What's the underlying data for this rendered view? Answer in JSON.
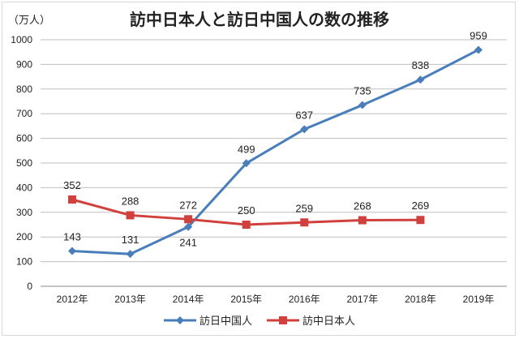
{
  "chart_data": {
    "type": "line",
    "title": "訪中日本人と訪日中国人の数の推移",
    "ylabel": "（万人）",
    "xlabel": "",
    "categories": [
      "2012年",
      "2013年",
      "2014年",
      "2015年",
      "2016年",
      "2017年",
      "2018年",
      "2019年"
    ],
    "ylim": [
      0,
      1000
    ],
    "yticks": [
      0,
      100,
      200,
      300,
      400,
      500,
      600,
      700,
      800,
      900,
      1000
    ],
    "grid": true,
    "legend_position": "bottom",
    "series": [
      {
        "name": "訪日中国人",
        "color": "#4a7ebb",
        "marker": "diamond",
        "values": [
          143,
          131,
          241,
          499,
          637,
          735,
          838,
          959
        ]
      },
      {
        "name": "訪中日本人",
        "color": "#d0403c",
        "marker": "square",
        "values": [
          352,
          288,
          272,
          250,
          259,
          268,
          269,
          null
        ]
      }
    ]
  }
}
